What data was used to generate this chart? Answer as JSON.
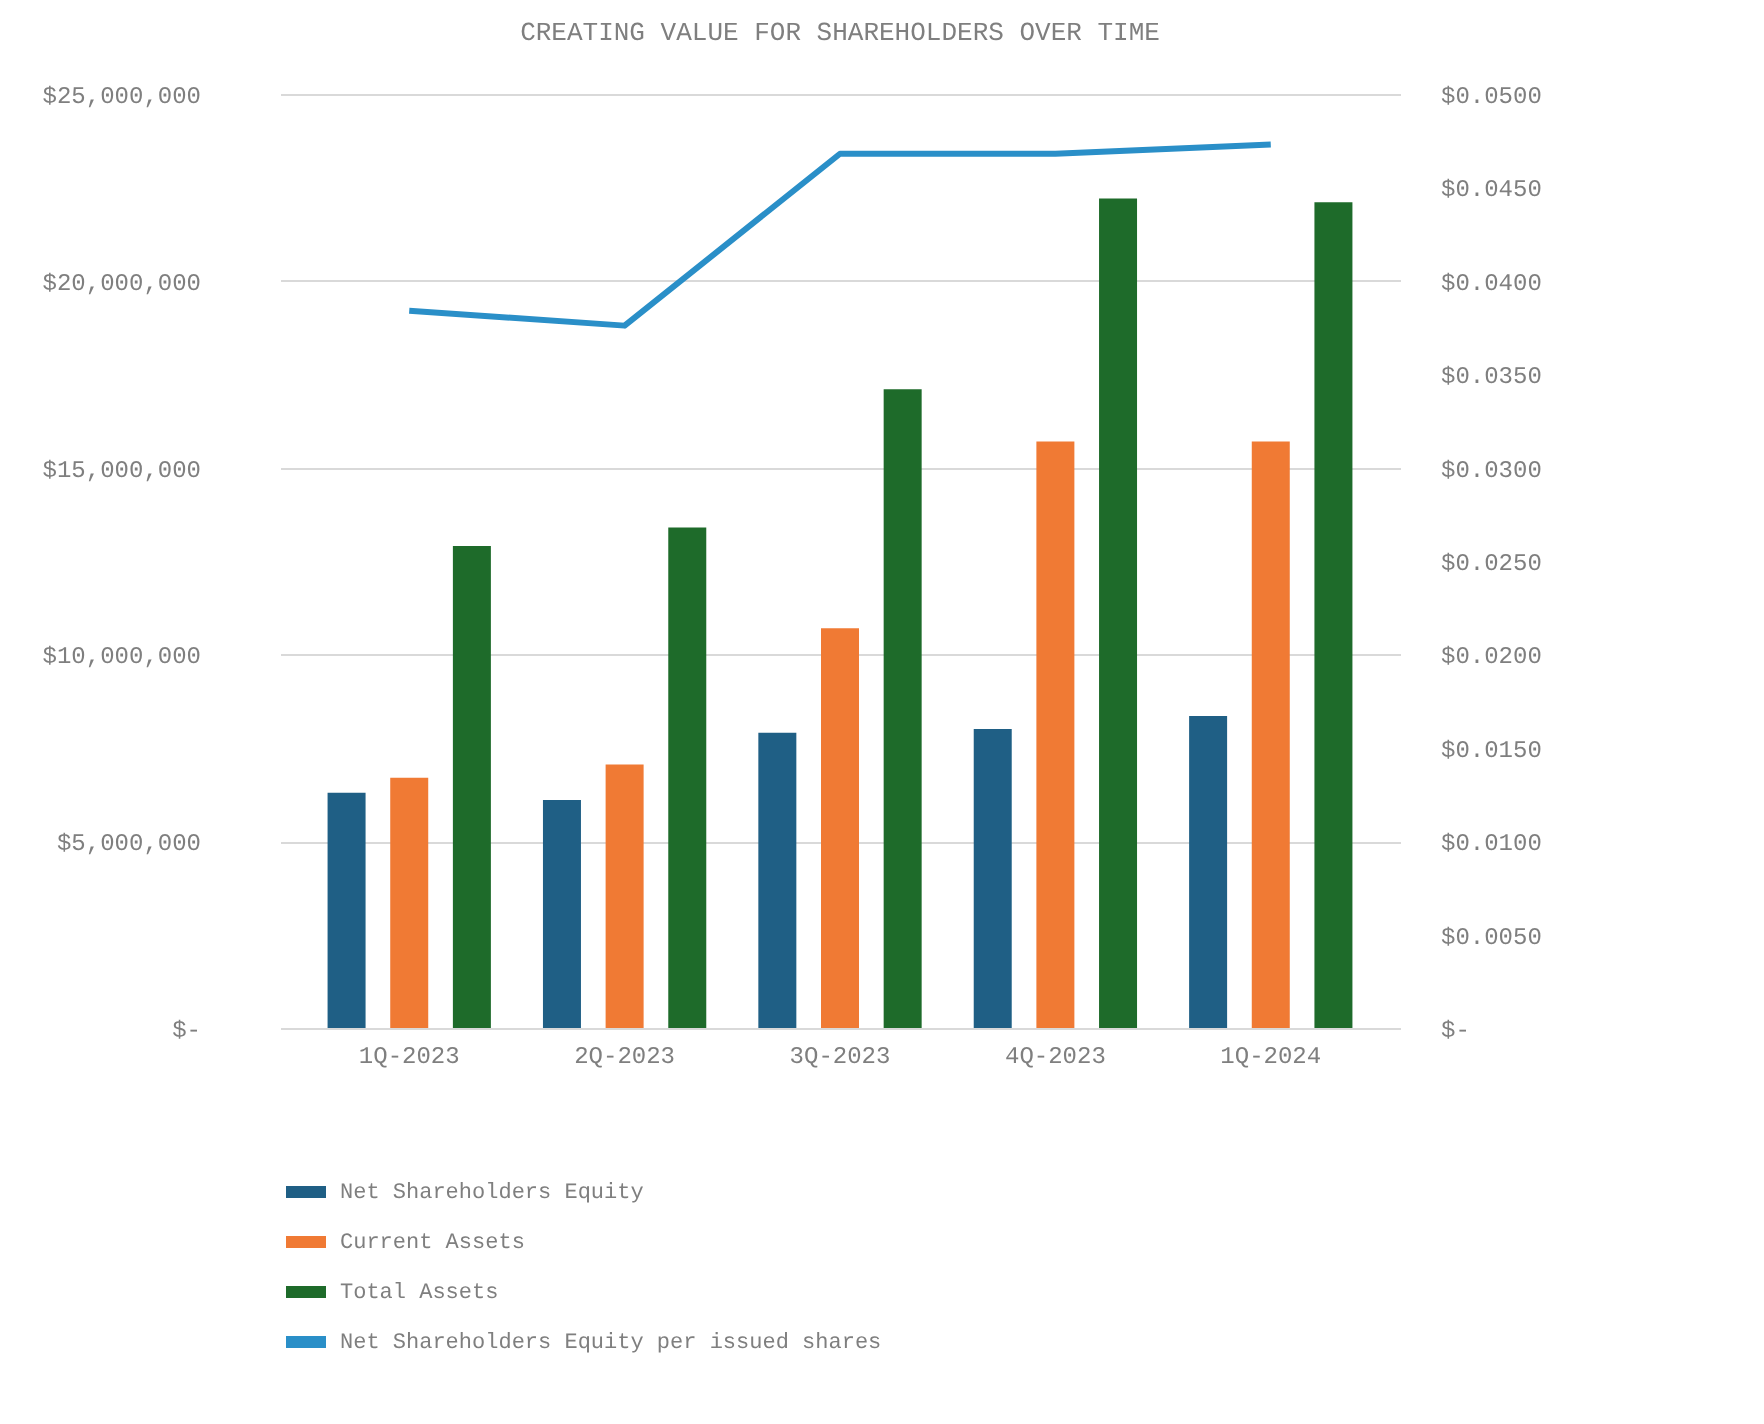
{
  "chart_data": {
    "type": "bar",
    "title": "CREATING VALUE FOR SHAREHOLDERS OVER TIME",
    "categories": [
      "1Q-2023",
      "2Q-2023",
      "3Q-2023",
      "4Q-2023",
      "1Q-2024"
    ],
    "series": [
      {
        "name": "Net Shareholders Equity",
        "color": "#1f5f85",
        "values": [
          6300000,
          6100000,
          7900000,
          8000000,
          8350000
        ]
      },
      {
        "name": "Current Assets",
        "color": "#f07a34",
        "values": [
          6700000,
          7050000,
          10700000,
          15700000,
          15700000
        ]
      },
      {
        "name": "Total Assets",
        "color": "#1e6b2a",
        "values": [
          12900000,
          13400000,
          17100000,
          22200000,
          22100000
        ]
      },
      {
        "name": "Net Shareholders Equity per issued shares",
        "type": "line",
        "axis": "y2",
        "color": "#2a8fc8",
        "values": [
          0.0384,
          0.0376,
          0.0468,
          0.0468,
          0.0473
        ]
      }
    ],
    "ylim": [
      0,
      25000000
    ],
    "yticks": [
      {
        "value": 0,
        "label": "$-"
      },
      {
        "value": 5000000,
        "label": "$5,000,000"
      },
      {
        "value": 10000000,
        "label": "$10,000,000"
      },
      {
        "value": 15000000,
        "label": "$15,000,000"
      },
      {
        "value": 20000000,
        "label": "$20,000,000"
      },
      {
        "value": 25000000,
        "label": "$25,000,000"
      }
    ],
    "y2lim": [
      0,
      0.05
    ],
    "y2ticks": [
      {
        "value": 0,
        "label": "$-"
      },
      {
        "value": 0.005,
        "label": "$0.0050"
      },
      {
        "value": 0.01,
        "label": "$0.0100"
      },
      {
        "value": 0.015,
        "label": "$0.0150"
      },
      {
        "value": 0.02,
        "label": "$0.0200"
      },
      {
        "value": 0.025,
        "label": "$0.0250"
      },
      {
        "value": 0.03,
        "label": "$0.0300"
      },
      {
        "value": 0.035,
        "label": "$0.0350"
      },
      {
        "value": 0.04,
        "label": "$0.0400"
      },
      {
        "value": 0.045,
        "label": "$0.0450"
      },
      {
        "value": 0.05,
        "label": "$0.0500"
      }
    ],
    "grid": "y",
    "legend": "bottom"
  }
}
